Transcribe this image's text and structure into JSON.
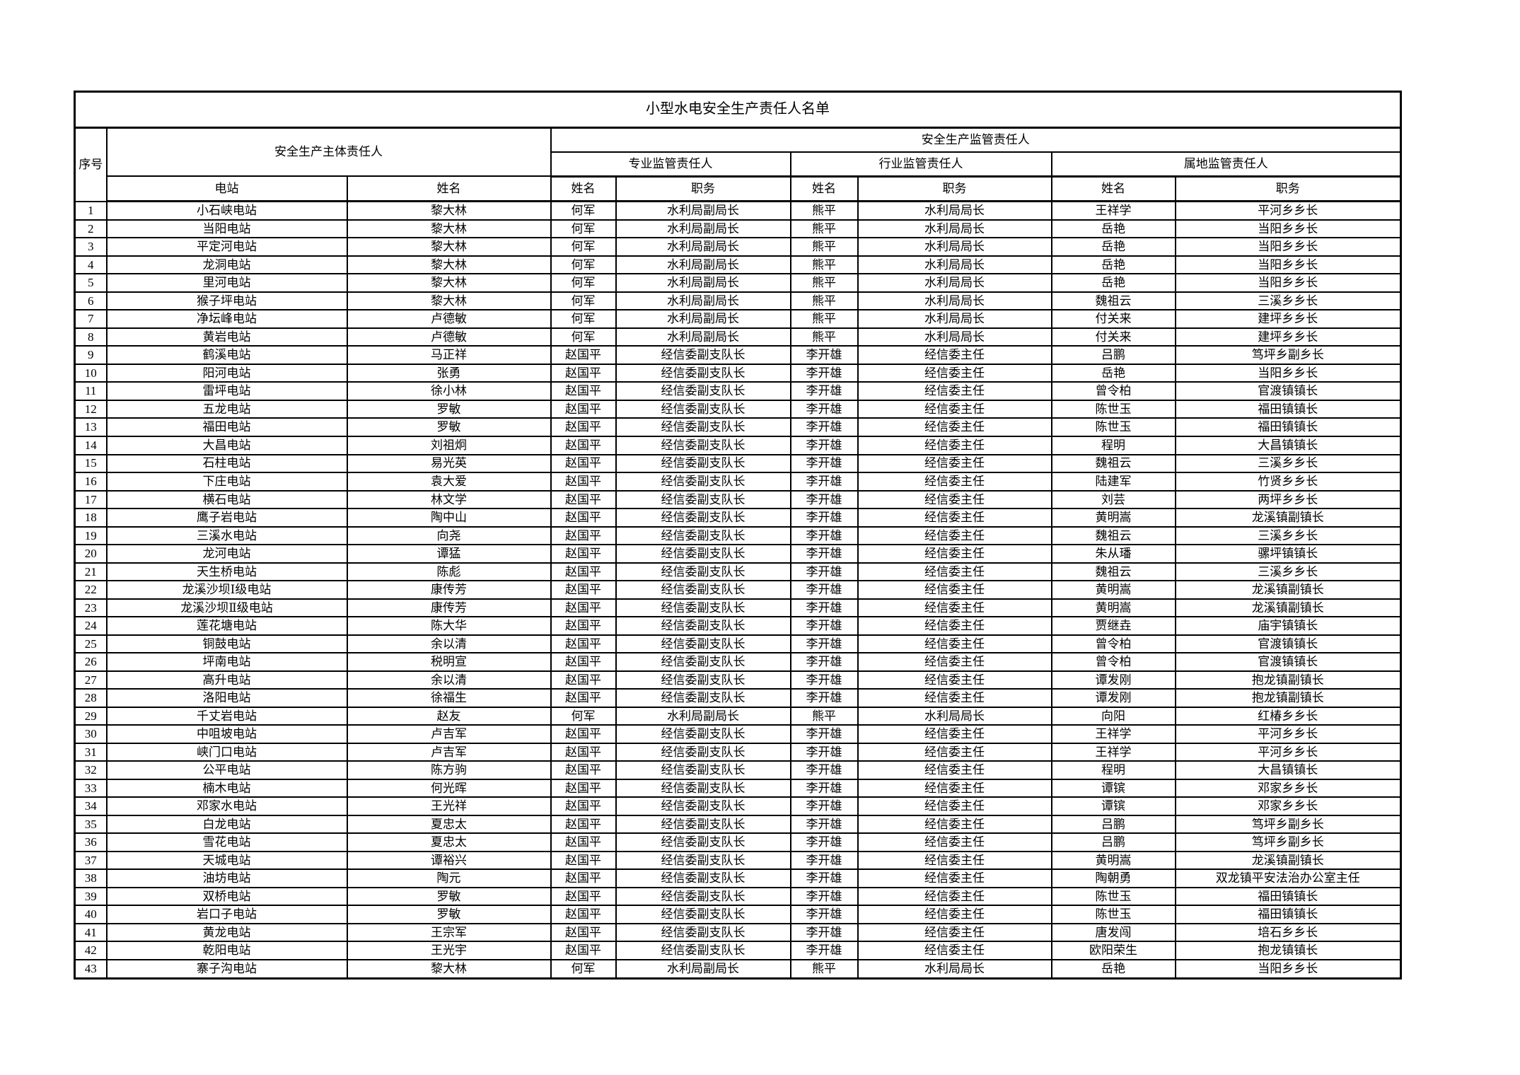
{
  "page": {
    "title": "小型水电安全生产责任人名单"
  },
  "table": {
    "header": {
      "seq": "序号",
      "main_group": "安全生产主体责任人",
      "supervision_group": "安全生产监管责任人",
      "sub_groups": [
        "专业监管责任人",
        "行业监管责任人",
        "属地监管责任人"
      ],
      "col_station": "电站",
      "col_name": "姓名",
      "col_title": "职务"
    },
    "rows": [
      {
        "seq": "1",
        "station": "小石峡电站",
        "owner": "黎大林",
        "prof_name": "何军",
        "prof_title": "水利局副局长",
        "ind_name": "熊平",
        "ind_title": "水利局局长",
        "ter_name": "王祥学",
        "ter_title": "平河乡乡长"
      },
      {
        "seq": "2",
        "station": "当阳电站",
        "owner": "黎大林",
        "prof_name": "何军",
        "prof_title": "水利局副局长",
        "ind_name": "熊平",
        "ind_title": "水利局局长",
        "ter_name": "岳艳",
        "ter_title": "当阳乡乡长"
      },
      {
        "seq": "3",
        "station": "平定河电站",
        "owner": "黎大林",
        "prof_name": "何军",
        "prof_title": "水利局副局长",
        "ind_name": "熊平",
        "ind_title": "水利局局长",
        "ter_name": "岳艳",
        "ter_title": "当阳乡乡长"
      },
      {
        "seq": "4",
        "station": "龙洞电站",
        "owner": "黎大林",
        "prof_name": "何军",
        "prof_title": "水利局副局长",
        "ind_name": "熊平",
        "ind_title": "水利局局长",
        "ter_name": "岳艳",
        "ter_title": "当阳乡乡长"
      },
      {
        "seq": "5",
        "station": "里河电站",
        "owner": "黎大林",
        "prof_name": "何军",
        "prof_title": "水利局副局长",
        "ind_name": "熊平",
        "ind_title": "水利局局长",
        "ter_name": "岳艳",
        "ter_title": "当阳乡乡长"
      },
      {
        "seq": "6",
        "station": "猴子坪电站",
        "owner": "黎大林",
        "prof_name": "何军",
        "prof_title": "水利局副局长",
        "ind_name": "熊平",
        "ind_title": "水利局局长",
        "ter_name": "魏祖云",
        "ter_title": "三溪乡乡长"
      },
      {
        "seq": "7",
        "station": "净坛峰电站",
        "owner": "卢德敏",
        "prof_name": "何军",
        "prof_title": "水利局副局长",
        "ind_name": "熊平",
        "ind_title": "水利局局长",
        "ter_name": "付关来",
        "ter_title": "建坪乡乡长"
      },
      {
        "seq": "8",
        "station": "黄岩电站",
        "owner": "卢德敏",
        "prof_name": "何军",
        "prof_title": "水利局副局长",
        "ind_name": "熊平",
        "ind_title": "水利局局长",
        "ter_name": "付关来",
        "ter_title": "建坪乡乡长"
      },
      {
        "seq": "9",
        "station": "鹤溪电站",
        "owner": "马正祥",
        "prof_name": "赵国平",
        "prof_title": "经信委副支队长",
        "ind_name": "李开雄",
        "ind_title": "经信委主任",
        "ter_name": "吕鹏",
        "ter_title": "笃坪乡副乡长"
      },
      {
        "seq": "10",
        "station": "阳河电站",
        "owner": "张勇",
        "prof_name": "赵国平",
        "prof_title": "经信委副支队长",
        "ind_name": "李开雄",
        "ind_title": "经信委主任",
        "ter_name": "岳艳",
        "ter_title": "当阳乡乡长"
      },
      {
        "seq": "11",
        "station": "雷坪电站",
        "owner": "徐小林",
        "prof_name": "赵国平",
        "prof_title": "经信委副支队长",
        "ind_name": "李开雄",
        "ind_title": "经信委主任",
        "ter_name": "曾令柏",
        "ter_title": "官渡镇镇长"
      },
      {
        "seq": "12",
        "station": "五龙电站",
        "owner": "罗敏",
        "prof_name": "赵国平",
        "prof_title": "经信委副支队长",
        "ind_name": "李开雄",
        "ind_title": "经信委主任",
        "ter_name": "陈世玉",
        "ter_title": "福田镇镇长"
      },
      {
        "seq": "13",
        "station": "福田电站",
        "owner": "罗敏",
        "prof_name": "赵国平",
        "prof_title": "经信委副支队长",
        "ind_name": "李开雄",
        "ind_title": "经信委主任",
        "ter_name": "陈世玉",
        "ter_title": "福田镇镇长"
      },
      {
        "seq": "14",
        "station": "大昌电站",
        "owner": "刘祖炯",
        "prof_name": "赵国平",
        "prof_title": "经信委副支队长",
        "ind_name": "李开雄",
        "ind_title": "经信委主任",
        "ter_name": "程明",
        "ter_title": "大昌镇镇长"
      },
      {
        "seq": "15",
        "station": "石柱电站",
        "owner": "易光英",
        "prof_name": "赵国平",
        "prof_title": "经信委副支队长",
        "ind_name": "李开雄",
        "ind_title": "经信委主任",
        "ter_name": "魏祖云",
        "ter_title": "三溪乡乡长"
      },
      {
        "seq": "16",
        "station": "下庄电站",
        "owner": "袁大爱",
        "prof_name": "赵国平",
        "prof_title": "经信委副支队长",
        "ind_name": "李开雄",
        "ind_title": "经信委主任",
        "ter_name": "陆建军",
        "ter_title": "竹贤乡乡长"
      },
      {
        "seq": "17",
        "station": "横石电站",
        "owner": "林文学",
        "prof_name": "赵国平",
        "prof_title": "经信委副支队长",
        "ind_name": "李开雄",
        "ind_title": "经信委主任",
        "ter_name": "刘芸",
        "ter_title": "两坪乡乡长"
      },
      {
        "seq": "18",
        "station": "鹰子岩电站",
        "owner": "陶中山",
        "prof_name": "赵国平",
        "prof_title": "经信委副支队长",
        "ind_name": "李开雄",
        "ind_title": "经信委主任",
        "ter_name": "黄明嵩",
        "ter_title": "龙溪镇副镇长"
      },
      {
        "seq": "19",
        "station": "三溪水电站",
        "owner": "向尧",
        "prof_name": "赵国平",
        "prof_title": "经信委副支队长",
        "ind_name": "李开雄",
        "ind_title": "经信委主任",
        "ter_name": "魏祖云",
        "ter_title": "三溪乡乡长"
      },
      {
        "seq": "20",
        "station": "龙河电站",
        "owner": "谭猛",
        "prof_name": "赵国平",
        "prof_title": "经信委副支队长",
        "ind_name": "李开雄",
        "ind_title": "经信委主任",
        "ter_name": "朱从璠",
        "ter_title": "骡坪镇镇长"
      },
      {
        "seq": "21",
        "station": "天生桥电站",
        "owner": "陈彪",
        "prof_name": "赵国平",
        "prof_title": "经信委副支队长",
        "ind_name": "李开雄",
        "ind_title": "经信委主任",
        "ter_name": "魏祖云",
        "ter_title": "三溪乡乡长"
      },
      {
        "seq": "22",
        "station": "龙溪沙坝Ⅰ级电站",
        "owner": "康传芳",
        "prof_name": "赵国平",
        "prof_title": "经信委副支队长",
        "ind_name": "李开雄",
        "ind_title": "经信委主任",
        "ter_name": "黄明嵩",
        "ter_title": "龙溪镇副镇长"
      },
      {
        "seq": "23",
        "station": "龙溪沙坝Ⅱ级电站",
        "owner": "康传芳",
        "prof_name": "赵国平",
        "prof_title": "经信委副支队长",
        "ind_name": "李开雄",
        "ind_title": "经信委主任",
        "ter_name": "黄明嵩",
        "ter_title": "龙溪镇副镇长"
      },
      {
        "seq": "24",
        "station": "莲花塘电站",
        "owner": "陈大华",
        "prof_name": "赵国平",
        "prof_title": "经信委副支队长",
        "ind_name": "李开雄",
        "ind_title": "经信委主任",
        "ter_name": "贾继垚",
        "ter_title": "庙宇镇镇长"
      },
      {
        "seq": "25",
        "station": "铜鼓电站",
        "owner": "余以清",
        "prof_name": "赵国平",
        "prof_title": "经信委副支队长",
        "ind_name": "李开雄",
        "ind_title": "经信委主任",
        "ter_name": "曾令柏",
        "ter_title": "官渡镇镇长"
      },
      {
        "seq": "26",
        "station": "坪南电站",
        "owner": "税明宣",
        "prof_name": "赵国平",
        "prof_title": "经信委副支队长",
        "ind_name": "李开雄",
        "ind_title": "经信委主任",
        "ter_name": "曾令柏",
        "ter_title": "官渡镇镇长"
      },
      {
        "seq": "27",
        "station": "高升电站",
        "owner": "余以清",
        "prof_name": "赵国平",
        "prof_title": "经信委副支队长",
        "ind_name": "李开雄",
        "ind_title": "经信委主任",
        "ter_name": "谭发刚",
        "ter_title": "抱龙镇副镇长"
      },
      {
        "seq": "28",
        "station": "洛阳电站",
        "owner": "徐福生",
        "prof_name": "赵国平",
        "prof_title": "经信委副支队长",
        "ind_name": "李开雄",
        "ind_title": "经信委主任",
        "ter_name": "谭发刚",
        "ter_title": "抱龙镇副镇长"
      },
      {
        "seq": "29",
        "station": "千丈岩电站",
        "owner": "赵友",
        "prof_name": "何军",
        "prof_title": "水利局副局长",
        "ind_name": "熊平",
        "ind_title": "水利局局长",
        "ter_name": "向阳",
        "ter_title": "红椿乡乡长"
      },
      {
        "seq": "30",
        "station": "中咀坡电站",
        "owner": "卢吉军",
        "prof_name": "赵国平",
        "prof_title": "经信委副支队长",
        "ind_name": "李开雄",
        "ind_title": "经信委主任",
        "ter_name": "王祥学",
        "ter_title": "平河乡乡长"
      },
      {
        "seq": "31",
        "station": "峡门口电站",
        "owner": "卢吉军",
        "prof_name": "赵国平",
        "prof_title": "经信委副支队长",
        "ind_name": "李开雄",
        "ind_title": "经信委主任",
        "ter_name": "王祥学",
        "ter_title": "平河乡乡长"
      },
      {
        "seq": "32",
        "station": "公平电站",
        "owner": "陈方驹",
        "prof_name": "赵国平",
        "prof_title": "经信委副支队长",
        "ind_name": "李开雄",
        "ind_title": "经信委主任",
        "ter_name": "程明",
        "ter_title": "大昌镇镇长"
      },
      {
        "seq": "33",
        "station": "楠木电站",
        "owner": "何光晖",
        "prof_name": "赵国平",
        "prof_title": "经信委副支队长",
        "ind_name": "李开雄",
        "ind_title": "经信委主任",
        "ter_name": "谭镔",
        "ter_title": "邓家乡乡长"
      },
      {
        "seq": "34",
        "station": "邓家水电站",
        "owner": "王光祥",
        "prof_name": "赵国平",
        "prof_title": "经信委副支队长",
        "ind_name": "李开雄",
        "ind_title": "经信委主任",
        "ter_name": "谭镔",
        "ter_title": "邓家乡乡长"
      },
      {
        "seq": "35",
        "station": "白龙电站",
        "owner": "夏忠太",
        "prof_name": "赵国平",
        "prof_title": "经信委副支队长",
        "ind_name": "李开雄",
        "ind_title": "经信委主任",
        "ter_name": "吕鹏",
        "ter_title": "笃坪乡副乡长"
      },
      {
        "seq": "36",
        "station": "雪花电站",
        "owner": "夏忠太",
        "prof_name": "赵国平",
        "prof_title": "经信委副支队长",
        "ind_name": "李开雄",
        "ind_title": "经信委主任",
        "ter_name": "吕鹏",
        "ter_title": "笃坪乡副乡长"
      },
      {
        "seq": "37",
        "station": "天城电站",
        "owner": "谭裕兴",
        "prof_name": "赵国平",
        "prof_title": "经信委副支队长",
        "ind_name": "李开雄",
        "ind_title": "经信委主任",
        "ter_name": "黄明嵩",
        "ter_title": "龙溪镇副镇长"
      },
      {
        "seq": "38",
        "station": "油坊电站",
        "owner": "陶元",
        "prof_name": "赵国平",
        "prof_title": "经信委副支队长",
        "ind_name": "李开雄",
        "ind_title": "经信委主任",
        "ter_name": "陶朝勇",
        "ter_title": "双龙镇平安法治办公室主任"
      },
      {
        "seq": "39",
        "station": "双桥电站",
        "owner": "罗敏",
        "prof_name": "赵国平",
        "prof_title": "经信委副支队长",
        "ind_name": "李开雄",
        "ind_title": "经信委主任",
        "ter_name": "陈世玉",
        "ter_title": "福田镇镇长"
      },
      {
        "seq": "40",
        "station": "岩口子电站",
        "owner": "罗敏",
        "prof_name": "赵国平",
        "prof_title": "经信委副支队长",
        "ind_name": "李开雄",
        "ind_title": "经信委主任",
        "ter_name": "陈世玉",
        "ter_title": "福田镇镇长"
      },
      {
        "seq": "41",
        "station": "黄龙电站",
        "owner": "王宗军",
        "prof_name": "赵国平",
        "prof_title": "经信委副支队长",
        "ind_name": "李开雄",
        "ind_title": "经信委主任",
        "ter_name": "唐发闯",
        "ter_title": "培石乡乡长"
      },
      {
        "seq": "42",
        "station": "乾阳电站",
        "owner": "王光宇",
        "prof_name": "赵国平",
        "prof_title": "经信委副支队长",
        "ind_name": "李开雄",
        "ind_title": "经信委主任",
        "ter_name": "欧阳荣生",
        "ter_title": "抱龙镇镇长"
      },
      {
        "seq": "43",
        "station": "寨子沟电站",
        "owner": "黎大林",
        "prof_name": "何军",
        "prof_title": "水利局副局长",
        "ind_name": "熊平",
        "ind_title": "水利局局长",
        "ter_name": "岳艳",
        "ter_title": "当阳乡乡长"
      }
    ]
  }
}
